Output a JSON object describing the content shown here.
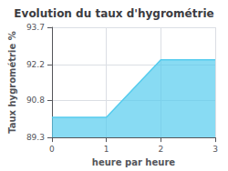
{
  "chart_data": {
    "type": "area",
    "title": "Evolution du taux d'hygrométrie",
    "xlabel": "heure par heure",
    "ylabel": "Taux hygrométrie %",
    "x": [
      0,
      1,
      2,
      3
    ],
    "values": [
      90.1,
      90.1,
      92.4,
      92.4
    ],
    "color": "#55ccee",
    "xlim": [
      0,
      3
    ],
    "xticks": [
      0,
      1,
      2,
      3
    ],
    "ylim": [
      89.3,
      93.7
    ],
    "yticks": [
      89.3,
      90.8,
      92.2,
      93.7
    ],
    "grid": true
  }
}
